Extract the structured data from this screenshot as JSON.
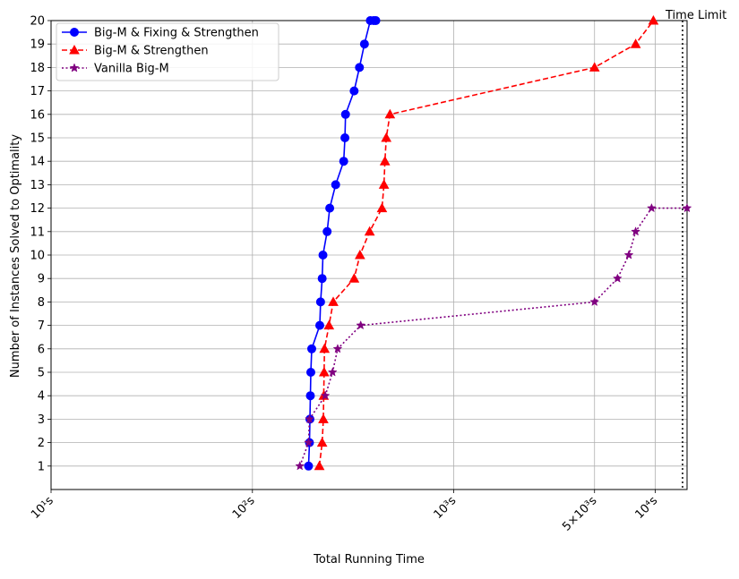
{
  "chart_data": {
    "type": "line",
    "title": "",
    "xlabel": "Total Running Time",
    "ylabel": "Number of Instances Solved to Optimality",
    "x_scale": "log",
    "xlim": [
      10,
      14400
    ],
    "ylim": [
      0,
      20
    ],
    "x_ticks": [
      {
        "value": 10,
        "label": "10¹s"
      },
      {
        "value": 100,
        "label": "10²s"
      },
      {
        "value": 1000,
        "label": "10³s"
      },
      {
        "value": 5000,
        "label": "5×10³s"
      },
      {
        "value": 10000,
        "label": "10⁴s"
      }
    ],
    "y_ticks": [
      1,
      2,
      3,
      4,
      5,
      6,
      7,
      8,
      9,
      10,
      11,
      12,
      13,
      14,
      15,
      16,
      17,
      18,
      19,
      20
    ],
    "grid": true,
    "legend_position": "top-left",
    "time_limit": {
      "value": 14400,
      "label": "Time Limit"
    },
    "series": [
      {
        "name": "Big-M & Fixing & Strengthen",
        "color": "#0000ff",
        "marker": "circle",
        "line": "solid",
        "x": [
          190,
          192,
          193,
          194,
          195,
          197,
          216,
          218,
          222,
          224,
          235,
          242,
          259,
          284,
          288,
          290,
          320,
          340,
          360,
          385,
          400,
          410
        ],
        "y": [
          1,
          2,
          3,
          4,
          5,
          6,
          7,
          8,
          9,
          10,
          11,
          12,
          13,
          14,
          15,
          16,
          17,
          18,
          19,
          20,
          20,
          20
        ]
      },
      {
        "name": "Big-M & Strengthen",
        "color": "#ff0000",
        "marker": "triangle",
        "line": "dashed",
        "x": [
          215,
          222,
          225,
          226,
          227,
          228,
          240,
          252,
          320,
          342,
          382,
          440,
          450,
          455,
          462,
          482,
          5000,
          8000,
          9800
        ],
        "y": [
          1,
          2,
          3,
          4,
          5,
          6,
          7,
          8,
          9,
          10,
          11,
          12,
          13,
          14,
          15,
          16,
          18,
          19,
          20
        ]
      },
      {
        "name": "Vanilla Big-M",
        "color": "#800080",
        "marker": "star",
        "line": "dotted",
        "x": [
          172,
          190,
          192,
          230,
          250,
          265,
          345,
          5000,
          6500,
          7400,
          8000,
          9600,
          14400
        ],
        "y": [
          1,
          2,
          3,
          4,
          5,
          6,
          7,
          8,
          9,
          10,
          11,
          12,
          12
        ]
      }
    ]
  }
}
